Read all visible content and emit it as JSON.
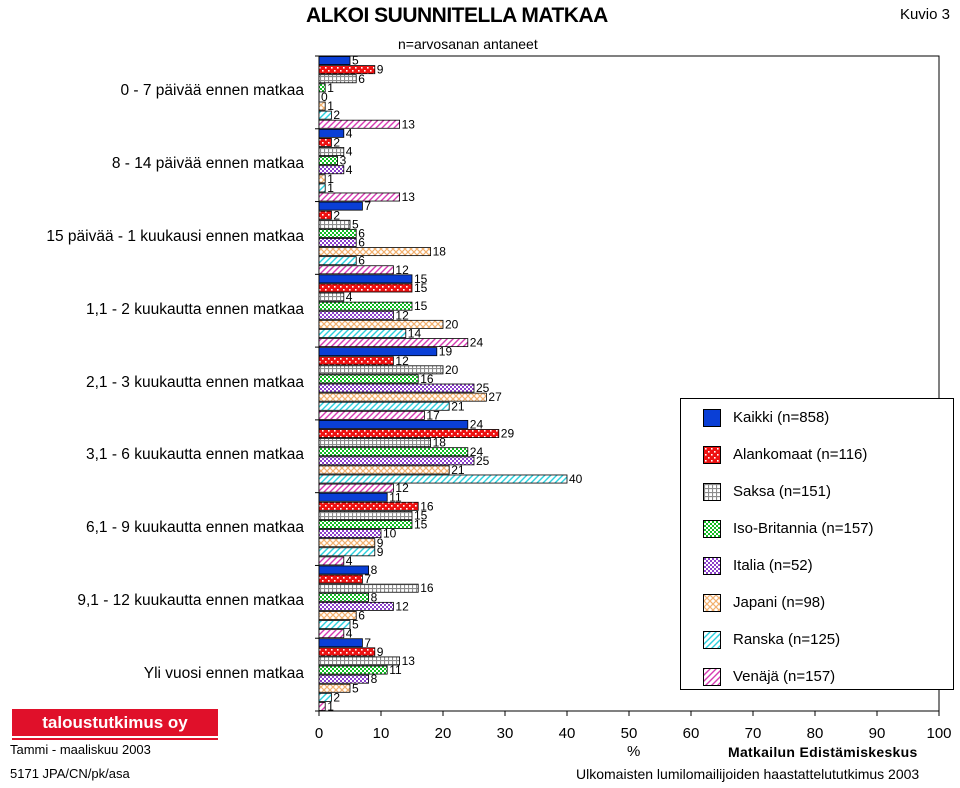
{
  "header": {
    "title": "ALKOI SUUNNITELLA MATKAA",
    "subtitle": "n=arvosanan antaneet",
    "figure": "Kuvio 3"
  },
  "footer": {
    "logo": "taloustutkimus oy",
    "period": "Tammi - maaliskuu 2003",
    "code": "5171 JPA/CN/pk/asa",
    "org": "Matkailun Edistämiskeskus",
    "survey": "Ulkomaisten lumilomailijoiden haastattelututkimus 2003"
  },
  "chart_data": {
    "type": "bar",
    "orientation": "horizontal",
    "title": "ALKOI SUUNNITELLA MATKAA",
    "subtitle": "n=arvosanan antaneet",
    "xlabel": "%",
    "xlim": [
      0,
      100
    ],
    "xticks": [
      "0",
      "10",
      "20",
      "30",
      "40",
      "50",
      "60",
      "70",
      "80",
      "90",
      "100"
    ],
    "grid": false,
    "legend_position": "right",
    "categories": [
      "0 - 7 päivää ennen matkaa",
      "8 - 14 päivää ennen matkaa",
      "15 päivää - 1 kuukausi ennen matkaa",
      "1,1 - 2 kuukautta ennen matkaa",
      "2,1 - 3 kuukautta ennen matkaa",
      "3,1 - 6 kuukautta ennen matkaa",
      "6,1 - 9 kuukautta ennen matkaa",
      "9,1 - 12 kuukautta ennen matkaa",
      "Yli vuosi ennen matkaa"
    ],
    "series": [
      {
        "name": "Kaikki (n=858)",
        "values": [
          5,
          4,
          7,
          15,
          19,
          24,
          11,
          8,
          7
        ],
        "color": "#0a3fd6",
        "pattern": "solid"
      },
      {
        "name": "Alankomaat (n=116)",
        "values": [
          9,
          2,
          2,
          15,
          12,
          29,
          16,
          7,
          9
        ],
        "color": "#ee1111",
        "pattern": "dots"
      },
      {
        "name": "Saksa (n=151)",
        "values": [
          6,
          4,
          5,
          4,
          20,
          18,
          15,
          16,
          13
        ],
        "color": "#8c8c8c",
        "pattern": "grid"
      },
      {
        "name": "Iso-Britannia (n=157)",
        "values": [
          1,
          3,
          6,
          15,
          16,
          24,
          15,
          8,
          11
        ],
        "color": "#11bb22",
        "pattern": "check"
      },
      {
        "name": "Italia (n=52)",
        "values": [
          0,
          4,
          6,
          12,
          25,
          25,
          10,
          12,
          8
        ],
        "color": "#8a3fc9",
        "pattern": "check"
      },
      {
        "name": "Japani (n=98)",
        "values": [
          1,
          1,
          18,
          20,
          27,
          21,
          9,
          6,
          5
        ],
        "color": "#f2b06e",
        "pattern": "cross"
      },
      {
        "name": "Ranska (n=125)",
        "values": [
          2,
          1,
          6,
          14,
          21,
          40,
          9,
          5,
          2
        ],
        "color": "#2ad0de",
        "pattern": "diag"
      },
      {
        "name": "Venäjä (n=157)",
        "values": [
          13,
          13,
          12,
          24,
          17,
          12,
          4,
          4,
          1
        ],
        "color": "#d63ab2",
        "pattern": "diag"
      }
    ]
  }
}
